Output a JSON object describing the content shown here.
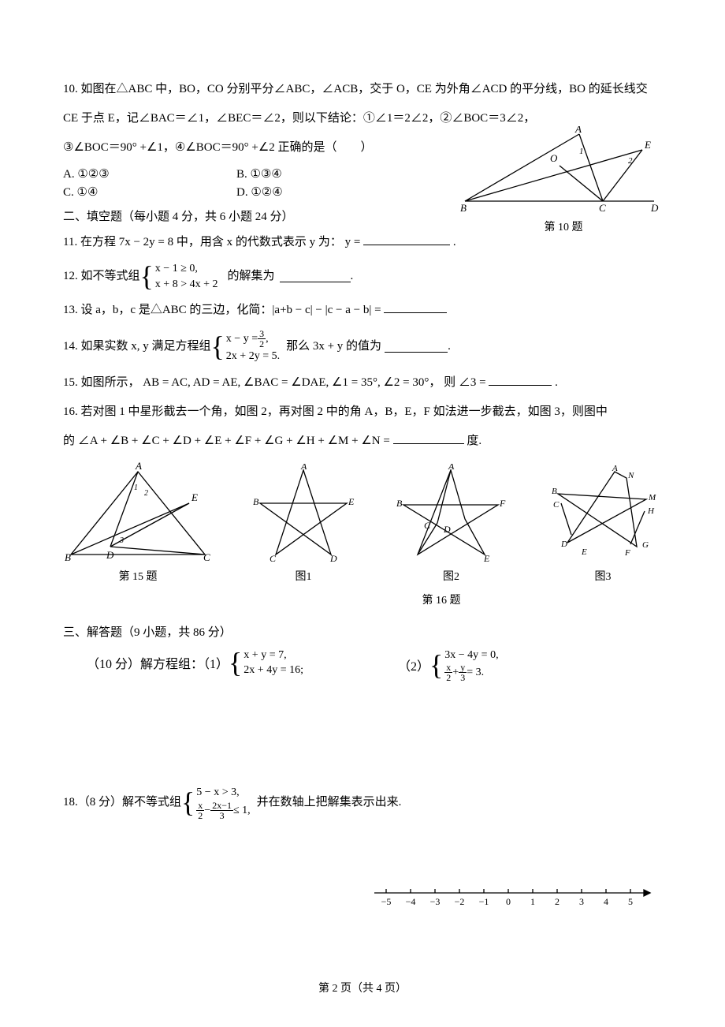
{
  "q10": {
    "stem1": "10. 如图在△ABC 中，BO，CO 分别平分∠ABC，∠ACB，交于 O，CE 为外角∠ACD 的平分线，BO 的延长线交",
    "stem2": "CE 于点 E，记∠BAC＝∠1，∠BEC＝∠2，则以下结论：①∠1＝2∠2，②∠BOC＝3∠2，",
    "stem3": "③∠BOC＝90° +∠1，④∠BOC＝90° +∠2 正确的是（　　）",
    "a": "A.  ①②③",
    "b": "B.  ①③④",
    "c": "C.  ①④",
    "d": "D.  ①②④",
    "fig_caption": "第 10 题",
    "fig": {
      "points": {
        "B": [
          10,
          95
        ],
        "C": [
          185,
          95
        ],
        "D": [
          250,
          95
        ],
        "A": [
          155,
          10
        ],
        "O": [
          130,
          50
        ],
        "E": [
          235,
          30
        ]
      },
      "labels": {
        "B": "B",
        "C": "C",
        "D": "D",
        "A": "A",
        "O": "O",
        "E": "E",
        "ang1": "1",
        "ang2": "2"
      },
      "stroke": "#000000"
    }
  },
  "section2": "二、填空题（每小题 4 分，共 6 小题 24 分）",
  "q11": "11. 在方程 7x − 2y = 8 中，用含 x 的代数式表示 y 为：  y = ",
  "q12": {
    "pre": "12. 如不等式组",
    "l1": "x − 1 ≥ 0,",
    "l2": "x + 8 > 4x + 2",
    "post": "的解集为"
  },
  "q13": "13. 设 a，b，c 是△ABC 的三边，化简：|a+b − c| − |c − a − b| = ",
  "q14": {
    "pre": "14.  如果实数 x, y 满足方程组",
    "l1": "x − y = ",
    "frac_n": "3",
    "frac_d": "2",
    "l1b": ",",
    "l2": "2x + 2y = 5.",
    "post": "  那么 3x + y 的值为"
  },
  "q15": "15.  如图所示，  AB = AC, AD = AE, ∠BAC = ∠DAE, ∠1 = 35°, ∠2 = 30°，  则 ∠3 = ",
  "q16": {
    "l1": "16. 若对图 1 中星形截去一个角，如图 2，再对图 2 中的角 A，B，E，F 如法进一步截去，如图 3，则图中",
    "l2": "的 ∠A + ∠B + ∠C + ∠D + ∠E + ∠F + ∠G + ∠H + ∠M + ∠N = ",
    "l2_suffix": "度.",
    "cap15": "第 15 题",
    "cap1": "图1",
    "cap2": "图2",
    "cap3": "图3",
    "cap16": "第 16 题"
  },
  "section3": "三、解答题（9 小题，共 86 分）",
  "q17": {
    "pre": "（10 分）解方程组：（1）",
    "a1": "x + y = 7,",
    "a2": "2x + 4y = 16;",
    "pre2": "（2）",
    "b1": "3x − 4y = 0,",
    "b2_f1n": "x",
    "b2_f1d": "2",
    "b2_plus": " + ",
    "b2_f2n": "y",
    "b2_f2d": "3",
    "b2_eq": " = 3."
  },
  "q18": {
    "pre": "18.（8 分）解不等式组",
    "l1": "5 − x > 3,",
    "l2_f1n": "x",
    "l2_f1d": "2",
    "l2_minus": " − ",
    "l2_f2n": "2x−1",
    "l2_f2d": "3",
    "l2_le": " ≤ 1,",
    "post": "并在数轴上把解集表示出来."
  },
  "numberline": {
    "ticks": [
      -5,
      -4,
      -3,
      -2,
      -1,
      0,
      1,
      2,
      3,
      4,
      5
    ],
    "stroke": "#000000"
  },
  "footer": "第 2 页（共 4 页）",
  "colors": {
    "text": "#000000",
    "bg": "#ffffff"
  },
  "stars": {
    "s1": {
      "pts": [
        [
          70,
          5
        ],
        [
          15,
          50
        ],
        [
          125,
          50
        ],
        [
          35,
          115
        ],
        [
          105,
          115
        ]
      ],
      "labels": {
        "A": "A",
        "B": "B",
        "E": "E",
        "C": "C",
        "D": "D"
      }
    },
    "s2": {
      "pts": [
        [
          70,
          5
        ],
        [
          10,
          55
        ],
        [
          130,
          55
        ],
        [
          25,
          115
        ],
        [
          115,
          115
        ]
      ],
      "labels": {
        "A": "A",
        "B": "B",
        "F": "F",
        "C": "C",
        "D": "D",
        "E": "E"
      }
    },
    "s3": {
      "pts": [
        [
          75,
          5
        ],
        [
          10,
          40
        ],
        [
          130,
          40
        ],
        [
          20,
          100
        ],
        [
          120,
          100
        ]
      ],
      "labels": {
        "A": "A",
        "B": "B",
        "M": "M",
        "N": "N",
        "C": "C",
        "H": "H",
        "D": "D",
        "E": "E",
        "F": "F",
        "G": "G"
      }
    }
  },
  "q15fig": {
    "labels": {
      "A": "A",
      "B": "B",
      "C": "C",
      "D": "D",
      "E": "E",
      "1": "1",
      "2": "2",
      "3": "3"
    }
  }
}
